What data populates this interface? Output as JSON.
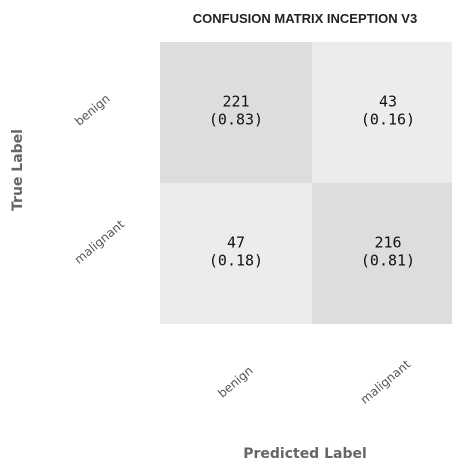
{
  "chart_data": {
    "type": "heatmap",
    "title": "CONFUSION MATRIX INCEPTION V3",
    "xlabel": "Predicted Label",
    "ylabel": "True Label",
    "x_categories": [
      "benign",
      "malignant"
    ],
    "y_categories": [
      "benign",
      "malignant"
    ],
    "counts": [
      [
        221,
        43
      ],
      [
        47,
        216
      ]
    ],
    "ratios": [
      [
        0.83,
        0.16
      ],
      [
        0.18,
        0.81
      ]
    ],
    "cell_labels": [
      [
        {
          "count": "221",
          "ratio": "(0.83)"
        },
        {
          "count": "43",
          "ratio": "(0.16)"
        }
      ],
      [
        {
          "count": "47",
          "ratio": "(0.18)"
        },
        {
          "count": "216",
          "ratio": "(0.81)"
        }
      ]
    ],
    "colors": {
      "high": "#d9d9d9",
      "low": "#efefef"
    }
  }
}
